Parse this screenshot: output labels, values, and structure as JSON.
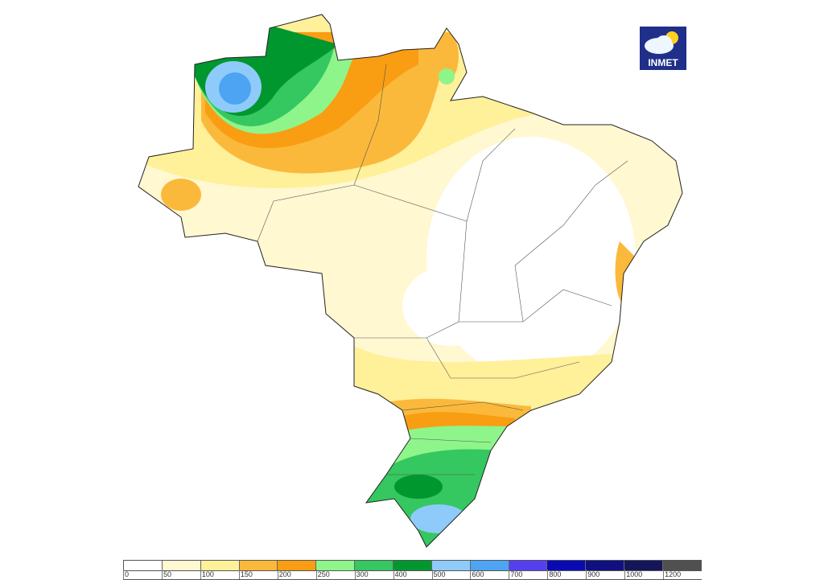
{
  "logo": {
    "text": "INMET"
  },
  "legend": {
    "labels": [
      "0",
      "50",
      "100",
      "150",
      "200",
      "250",
      "300",
      "400",
      "500",
      "600",
      "700",
      "800",
      "900",
      "1000",
      "1200"
    ],
    "colors": [
      "#ffffff",
      "#fff8d0",
      "#fff09a",
      "#fbb93b",
      "#f99d12",
      "#8ef58a",
      "#35c760",
      "#00972f",
      "#8fcbfa",
      "#4ca4f2",
      "#5540ef",
      "#0a0ab5",
      "#101080",
      "#15155a",
      "#505050"
    ]
  }
}
